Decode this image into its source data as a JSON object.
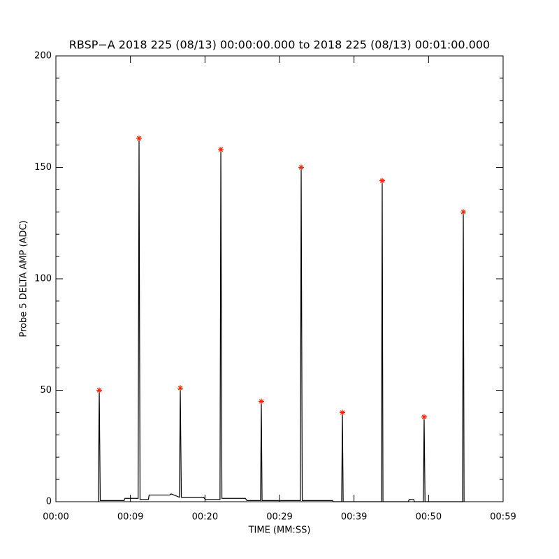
{
  "chart_data": {
    "type": "line",
    "title": "RBSP−A 2018 225 (08/13) 00:00:00.000 to 2018 225 (08/13) 00:01:00.000",
    "x_label": "TIME (MM:SS)",
    "y_label": "Probe 5 DELTA AMP (ADC)",
    "xlim": [
      0,
      59
    ],
    "ylim": [
      0,
      200
    ],
    "xticks": [
      {
        "value": 0,
        "label": "00:00"
      },
      {
        "value": 9.83,
        "label": "00:09"
      },
      {
        "value": 19.67,
        "label": "00:20"
      },
      {
        "value": 29.5,
        "label": "00:29"
      },
      {
        "value": 39.33,
        "label": "00:39"
      },
      {
        "value": 49.17,
        "label": "00:50"
      },
      {
        "value": 59,
        "label": "00:59"
      }
    ],
    "yticks": [
      0,
      50,
      100,
      150,
      200
    ],
    "yminor": 5,
    "series": [
      {
        "kind": "line",
        "color": "#000000",
        "x": [
          5.6,
          5.72,
          5.85,
          9.0,
          9.1,
          10.85,
          10.97,
          11.1,
          12.2,
          12.3,
          15.0,
          15.2,
          16.3,
          16.41,
          16.55,
          19.5,
          19.7,
          21.65,
          21.76,
          21.9,
          25.0,
          25.2,
          27.0,
          27.1,
          27.2,
          32.25,
          32.36,
          32.5,
          36.5,
          36.6,
          37.7,
          37.8,
          37.9,
          42.95,
          43.05,
          43.15,
          46.5,
          46.6,
          47.2,
          47.3,
          48.48,
          48.58,
          48.7,
          53.65,
          53.75,
          53.85
        ],
        "values": [
          0,
          50,
          0.5,
          0.5,
          1.5,
          1.5,
          163,
          1,
          1,
          3,
          3,
          3.5,
          2,
          51,
          2,
          2,
          1,
          1,
          158,
          1.5,
          1.5,
          0.5,
          0.5,
          45,
          0.5,
          0.5,
          150,
          0.5,
          0.5,
          0,
          0,
          40,
          0,
          0,
          144,
          0,
          0,
          1,
          1,
          0,
          0,
          38,
          0,
          0,
          130,
          0
        ]
      },
      {
        "kind": "markers",
        "color": "#ff2200",
        "x": [
          5.72,
          10.97,
          16.41,
          21.76,
          27.1,
          32.36,
          37.8,
          43.05,
          48.58,
          53.75
        ],
        "values": [
          50,
          163,
          51,
          158,
          45,
          150,
          40,
          144,
          38,
          130
        ]
      }
    ]
  }
}
